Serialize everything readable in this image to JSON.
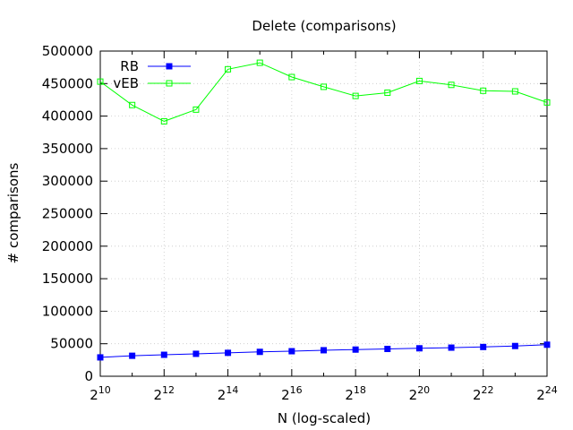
{
  "chart_data": {
    "type": "line",
    "title": "Delete (comparisons)",
    "xlabel": "N (log-scaled)",
    "ylabel": "# comparisons",
    "x_scale": "log2",
    "x": [
      1024,
      2048,
      4096,
      8192,
      16384,
      32768,
      65536,
      131072,
      262144,
      524288,
      1048576,
      2097152,
      4194304,
      8388608,
      16777216
    ],
    "xlim": [
      1024,
      16777216
    ],
    "ylim": [
      0,
      500000
    ],
    "x_tick_labels": [
      {
        "base": "2",
        "exp": "10"
      },
      {
        "base": "2",
        "exp": "12"
      },
      {
        "base": "2",
        "exp": "14"
      },
      {
        "base": "2",
        "exp": "16"
      },
      {
        "base": "2",
        "exp": "18"
      },
      {
        "base": "2",
        "exp": "20"
      },
      {
        "base": "2",
        "exp": "22"
      },
      {
        "base": "2",
        "exp": "24"
      }
    ],
    "x_tick_values": [
      1024,
      4096,
      16384,
      65536,
      262144,
      1048576,
      4194304,
      16777216
    ],
    "y_ticks": [
      0,
      50000,
      100000,
      150000,
      200000,
      250000,
      300000,
      350000,
      400000,
      450000,
      500000
    ],
    "y_tick_labels": [
      "0",
      "50000",
      "100000",
      "150000",
      "200000",
      "250000",
      "300000",
      "350000",
      "400000",
      "450000",
      "500000"
    ],
    "grid": true,
    "legend_position": "top-left",
    "series": [
      {
        "name": "RB",
        "color": "#0000ff",
        "marker": "filled-square",
        "values": [
          29000,
          31500,
          33000,
          34500,
          36000,
          37500,
          38500,
          40000,
          41000,
          42000,
          43000,
          44000,
          45000,
          46500,
          48500
        ]
      },
      {
        "name": "vEB",
        "color": "#00ff00",
        "marker": "open-square",
        "values": [
          453000,
          417000,
          392000,
          410000,
          472000,
          482000,
          460000,
          445000,
          431000,
          436000,
          454000,
          448000,
          439000,
          438000,
          421000
        ]
      }
    ]
  }
}
